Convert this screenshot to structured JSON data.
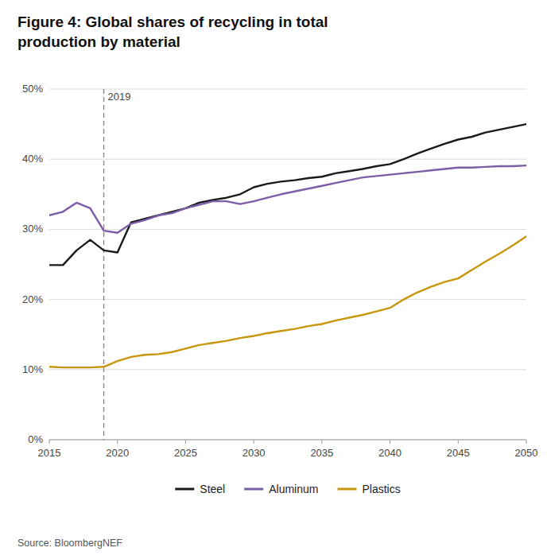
{
  "chart_data": {
    "type": "line",
    "title": "Figure 4: Global shares of recycling in total\nproduction by material",
    "source": "Source: BloombergNEF",
    "annotations": [
      {
        "x": 2019,
        "text": "2019"
      }
    ],
    "x": [
      2015,
      2016,
      2017,
      2018,
      2019,
      2020,
      2021,
      2022,
      2023,
      2024,
      2025,
      2026,
      2027,
      2028,
      2029,
      2030,
      2031,
      2032,
      2033,
      2034,
      2035,
      2036,
      2037,
      2038,
      2039,
      2040,
      2041,
      2042,
      2043,
      2044,
      2045,
      2046,
      2047,
      2048,
      2049,
      2050
    ],
    "series": [
      {
        "name": "Steel",
        "color": "#1a1a1a",
        "values": [
          0.249,
          0.249,
          0.27,
          0.285,
          0.27,
          0.267,
          0.31,
          0.315,
          0.32,
          0.325,
          0.33,
          0.338,
          0.342,
          0.345,
          0.35,
          0.36,
          0.365,
          0.368,
          0.37,
          0.373,
          0.375,
          0.38,
          0.383,
          0.386,
          0.39,
          0.393,
          0.4,
          0.408,
          0.415,
          0.422,
          0.428,
          0.432,
          0.438,
          0.442,
          0.446,
          0.45
        ]
      },
      {
        "name": "Aluminum",
        "color": "#7b5ea7",
        "values": [
          0.32,
          0.325,
          0.338,
          0.33,
          0.298,
          0.295,
          0.308,
          0.313,
          0.32,
          0.323,
          0.33,
          0.335,
          0.34,
          0.34,
          0.336,
          0.34,
          0.345,
          0.35,
          0.354,
          0.358,
          0.362,
          0.366,
          0.37,
          0.374,
          0.376,
          0.378,
          0.38,
          0.382,
          0.384,
          0.386,
          0.388,
          0.388,
          0.389,
          0.39,
          0.39,
          0.391
        ]
      },
      {
        "name": "Plastics",
        "color": "#c8960c",
        "values": [
          0.104,
          0.103,
          0.103,
          0.103,
          0.104,
          0.112,
          0.118,
          0.121,
          0.122,
          0.125,
          0.13,
          0.135,
          0.138,
          0.141,
          0.145,
          0.148,
          0.152,
          0.155,
          0.158,
          0.162,
          0.165,
          0.17,
          0.174,
          0.178,
          0.183,
          0.188,
          0.2,
          0.21,
          0.218,
          0.225,
          0.23,
          0.242,
          0.254,
          0.265,
          0.277,
          0.29
        ]
      }
    ],
    "xlim": [
      2015,
      2050
    ],
    "ylim": [
      0,
      0.5
    ],
    "xticks": [
      2015,
      2020,
      2025,
      2030,
      2035,
      2040,
      2045,
      2050
    ],
    "yticks": [
      {
        "value": 0.0,
        "label": "0%"
      },
      {
        "value": 0.1,
        "label": "10%"
      },
      {
        "value": 0.2,
        "label": "20%"
      },
      {
        "value": 0.3,
        "label": "30%"
      },
      {
        "value": 0.4,
        "label": "40%"
      },
      {
        "value": 0.5,
        "label": "50%"
      }
    ],
    "grid": "y",
    "legend": "bottom"
  }
}
